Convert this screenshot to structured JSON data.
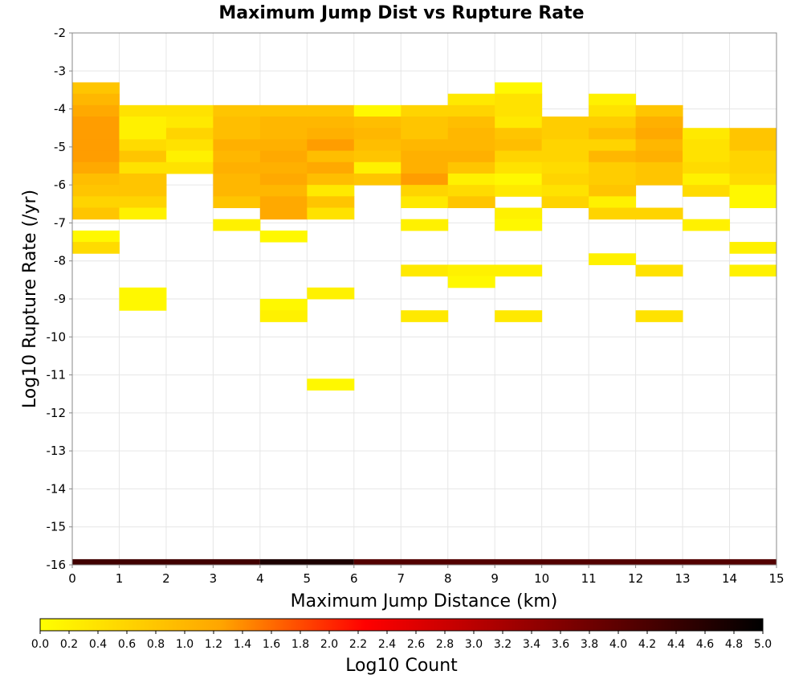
{
  "chart_data": {
    "type": "heatmap",
    "title": "Maximum Jump Dist vs Rupture Rate",
    "xlabel": "Maximum Jump Distance (km)",
    "ylabel": "Log10 Rupture Rate (/yr)",
    "colorbar_label": "Log10 Count",
    "xlim": [
      0,
      15
    ],
    "ylim": [
      -16,
      -2
    ],
    "x_ticks": [
      "0",
      "1",
      "2",
      "3",
      "4",
      "5",
      "6",
      "7",
      "8",
      "9",
      "10",
      "11",
      "12",
      "13",
      "14",
      "15"
    ],
    "y_ticks": [
      "-2",
      "-3",
      "-4",
      "-5",
      "-6",
      "-7",
      "-8",
      "-9",
      "-10",
      "-11",
      "-12",
      "-13",
      "-14",
      "-15",
      "-16"
    ],
    "colorbar_ticks": [
      "0.0",
      "0.2",
      "0.4",
      "0.6",
      "0.8",
      "1.0",
      "1.2",
      "1.4",
      "1.6",
      "1.8",
      "2.0",
      "2.2",
      "2.4",
      "2.6",
      "2.8",
      "3.0",
      "3.2",
      "3.4",
      "3.6",
      "3.8",
      "4.0",
      "4.2",
      "4.4",
      "4.6",
      "4.8",
      "5.0"
    ],
    "colorbar_range": [
      0,
      5
    ],
    "colormap": [
      "#ffff00",
      "#ffa500",
      "#ff0000",
      "#8b0000",
      "#000000"
    ],
    "bin_width_x": 1,
    "bin_height_y": 0.3,
    "grid": true,
    "cells": [
      {
        "x": 0,
        "y": -3.3,
        "v": 0.8
      },
      {
        "x": 0,
        "y": -3.6,
        "v": 1.0
      },
      {
        "x": 0,
        "y": -3.9,
        "v": 1.2
      },
      {
        "x": 0,
        "y": -4.2,
        "v": 1.3
      },
      {
        "x": 0,
        "y": -4.5,
        "v": 1.3
      },
      {
        "x": 0,
        "y": -4.8,
        "v": 1.3
      },
      {
        "x": 0,
        "y": -5.1,
        "v": 1.3
      },
      {
        "x": 0,
        "y": -5.4,
        "v": 1.2
      },
      {
        "x": 0,
        "y": -5.7,
        "v": 0.9
      },
      {
        "x": 0,
        "y": -6.0,
        "v": 0.8
      },
      {
        "x": 0,
        "y": -6.3,
        "v": 0.6
      },
      {
        "x": 0,
        "y": -6.6,
        "v": 0.8
      },
      {
        "x": 0,
        "y": -7.2,
        "v": 0.1
      },
      {
        "x": 0,
        "y": -7.5,
        "v": 0.5
      },
      {
        "x": 1,
        "y": -3.9,
        "v": 0.4
      },
      {
        "x": 1,
        "y": -4.2,
        "v": 0.2
      },
      {
        "x": 1,
        "y": -4.5,
        "v": 0.2
      },
      {
        "x": 1,
        "y": -4.8,
        "v": 0.5
      },
      {
        "x": 1,
        "y": -5.1,
        "v": 0.8
      },
      {
        "x": 1,
        "y": -5.4,
        "v": 0.4
      },
      {
        "x": 1,
        "y": -5.7,
        "v": 0.8
      },
      {
        "x": 1,
        "y": -6.0,
        "v": 0.8
      },
      {
        "x": 1,
        "y": -6.3,
        "v": 0.6
      },
      {
        "x": 1,
        "y": -6.6,
        "v": 0.2
      },
      {
        "x": 1,
        "y": -8.7,
        "v": 0.1
      },
      {
        "x": 1,
        "y": -9.0,
        "v": 0.1
      },
      {
        "x": 2,
        "y": -3.9,
        "v": 0.4
      },
      {
        "x": 2,
        "y": -4.2,
        "v": 0.3
      },
      {
        "x": 2,
        "y": -4.5,
        "v": 0.6
      },
      {
        "x": 2,
        "y": -4.8,
        "v": 0.4
      },
      {
        "x": 2,
        "y": -5.1,
        "v": 0.2
      },
      {
        "x": 2,
        "y": -5.4,
        "v": 0.4
      },
      {
        "x": 3,
        "y": -3.9,
        "v": 0.8
      },
      {
        "x": 3,
        "y": -4.2,
        "v": 0.9
      },
      {
        "x": 3,
        "y": -4.5,
        "v": 0.9
      },
      {
        "x": 3,
        "y": -4.8,
        "v": 1.1
      },
      {
        "x": 3,
        "y": -5.1,
        "v": 1.0
      },
      {
        "x": 3,
        "y": -5.4,
        "v": 1.1
      },
      {
        "x": 3,
        "y": -5.7,
        "v": 1.0
      },
      {
        "x": 3,
        "y": -6.0,
        "v": 1.0
      },
      {
        "x": 3,
        "y": -6.3,
        "v": 0.8
      },
      {
        "x": 3,
        "y": -6.9,
        "v": 0.2
      },
      {
        "x": 4,
        "y": -3.9,
        "v": 0.8
      },
      {
        "x": 4,
        "y": -4.2,
        "v": 1.0
      },
      {
        "x": 4,
        "y": -4.5,
        "v": 1.0
      },
      {
        "x": 4,
        "y": -4.8,
        "v": 1.1
      },
      {
        "x": 4,
        "y": -5.1,
        "v": 1.2
      },
      {
        "x": 4,
        "y": -5.4,
        "v": 1.1
      },
      {
        "x": 4,
        "y": -5.7,
        "v": 1.2
      },
      {
        "x": 4,
        "y": -6.0,
        "v": 1.0
      },
      {
        "x": 4,
        "y": -6.3,
        "v": 1.2
      },
      {
        "x": 4,
        "y": -6.6,
        "v": 1.2
      },
      {
        "x": 4,
        "y": -7.2,
        "v": 0.1
      },
      {
        "x": 4,
        "y": -9.0,
        "v": 0.1
      },
      {
        "x": 4,
        "y": -9.3,
        "v": 0.2
      },
      {
        "x": 5,
        "y": -3.9,
        "v": 0.8
      },
      {
        "x": 5,
        "y": -4.2,
        "v": 1.0
      },
      {
        "x": 5,
        "y": -4.5,
        "v": 1.1
      },
      {
        "x": 5,
        "y": -4.8,
        "v": 1.3
      },
      {
        "x": 5,
        "y": -5.1,
        "v": 0.9
      },
      {
        "x": 5,
        "y": -5.4,
        "v": 1.2
      },
      {
        "x": 5,
        "y": -5.7,
        "v": 0.9
      },
      {
        "x": 5,
        "y": -6.0,
        "v": 0.3
      },
      {
        "x": 5,
        "y": -6.3,
        "v": 0.8
      },
      {
        "x": 5,
        "y": -6.6,
        "v": 0.4
      },
      {
        "x": 5,
        "y": -8.7,
        "v": 0.2
      },
      {
        "x": 5,
        "y": -11.1,
        "v": 0.1
      },
      {
        "x": 6,
        "y": -3.9,
        "v": 0.1
      },
      {
        "x": 6,
        "y": -4.2,
        "v": 0.9
      },
      {
        "x": 6,
        "y": -4.5,
        "v": 1.0
      },
      {
        "x": 6,
        "y": -4.8,
        "v": 0.9
      },
      {
        "x": 6,
        "y": -5.1,
        "v": 0.8
      },
      {
        "x": 6,
        "y": -5.4,
        "v": 0.2
      },
      {
        "x": 6,
        "y": -5.7,
        "v": 0.8
      },
      {
        "x": 7,
        "y": -3.9,
        "v": 0.6
      },
      {
        "x": 7,
        "y": -4.2,
        "v": 0.8
      },
      {
        "x": 7,
        "y": -4.5,
        "v": 0.8
      },
      {
        "x": 7,
        "y": -4.8,
        "v": 1.0
      },
      {
        "x": 7,
        "y": -5.1,
        "v": 1.1
      },
      {
        "x": 7,
        "y": -5.4,
        "v": 1.1
      },
      {
        "x": 7,
        "y": -5.7,
        "v": 1.3
      },
      {
        "x": 7,
        "y": -6.0,
        "v": 0.6
      },
      {
        "x": 7,
        "y": -6.3,
        "v": 0.3
      },
      {
        "x": 7,
        "y": -6.9,
        "v": 0.2
      },
      {
        "x": 7,
        "y": -8.1,
        "v": 0.3
      },
      {
        "x": 7,
        "y": -9.3,
        "v": 0.3
      },
      {
        "x": 8,
        "y": -3.6,
        "v": 0.3
      },
      {
        "x": 8,
        "y": -3.9,
        "v": 0.6
      },
      {
        "x": 8,
        "y": -4.2,
        "v": 0.9
      },
      {
        "x": 8,
        "y": -4.5,
        "v": 1.0
      },
      {
        "x": 8,
        "y": -4.8,
        "v": 1.0
      },
      {
        "x": 8,
        "y": -5.1,
        "v": 1.1
      },
      {
        "x": 8,
        "y": -5.4,
        "v": 0.8
      },
      {
        "x": 8,
        "y": -5.7,
        "v": 0.2
      },
      {
        "x": 8,
        "y": -6.0,
        "v": 0.5
      },
      {
        "x": 8,
        "y": -6.3,
        "v": 0.8
      },
      {
        "x": 8,
        "y": -8.1,
        "v": 0.2
      },
      {
        "x": 8,
        "y": -8.4,
        "v": 0.1
      },
      {
        "x": 9,
        "y": -3.3,
        "v": 0.1
      },
      {
        "x": 9,
        "y": -3.6,
        "v": 0.4
      },
      {
        "x": 9,
        "y": -3.9,
        "v": 0.4
      },
      {
        "x": 9,
        "y": -4.2,
        "v": 0.3
      },
      {
        "x": 9,
        "y": -4.5,
        "v": 0.8
      },
      {
        "x": 9,
        "y": -4.8,
        "v": 0.9
      },
      {
        "x": 9,
        "y": -5.1,
        "v": 0.6
      },
      {
        "x": 9,
        "y": -5.4,
        "v": 0.4
      },
      {
        "x": 9,
        "y": -5.7,
        "v": 0.1
      },
      {
        "x": 9,
        "y": -6.0,
        "v": 0.3
      },
      {
        "x": 9,
        "y": -6.6,
        "v": 0.2
      },
      {
        "x": 9,
        "y": -6.9,
        "v": 0.1
      },
      {
        "x": 9,
        "y": -8.1,
        "v": 0.2
      },
      {
        "x": 9,
        "y": -9.3,
        "v": 0.3
      },
      {
        "x": 10,
        "y": -4.2,
        "v": 0.7
      },
      {
        "x": 10,
        "y": -4.5,
        "v": 0.7
      },
      {
        "x": 10,
        "y": -4.8,
        "v": 0.6
      },
      {
        "x": 10,
        "y": -5.1,
        "v": 0.6
      },
      {
        "x": 10,
        "y": -5.4,
        "v": 0.5
      },
      {
        "x": 10,
        "y": -5.7,
        "v": 0.6
      },
      {
        "x": 10,
        "y": -6.0,
        "v": 0.4
      },
      {
        "x": 10,
        "y": -6.3,
        "v": 0.6
      },
      {
        "x": 11,
        "y": -3.6,
        "v": 0.2
      },
      {
        "x": 11,
        "y": -3.9,
        "v": 0.4
      },
      {
        "x": 11,
        "y": -4.2,
        "v": 0.7
      },
      {
        "x": 11,
        "y": -4.5,
        "v": 0.9
      },
      {
        "x": 11,
        "y": -4.8,
        "v": 0.6
      },
      {
        "x": 11,
        "y": -5.1,
        "v": 1.0
      },
      {
        "x": 11,
        "y": -5.4,
        "v": 0.7
      },
      {
        "x": 11,
        "y": -5.7,
        "v": 0.7
      },
      {
        "x": 11,
        "y": -6.0,
        "v": 0.8
      },
      {
        "x": 11,
        "y": -6.3,
        "v": 0.2
      },
      {
        "x": 11,
        "y": -6.6,
        "v": 0.6
      },
      {
        "x": 11,
        "y": -7.8,
        "v": 0.2
      },
      {
        "x": 12,
        "y": -3.9,
        "v": 0.8
      },
      {
        "x": 12,
        "y": -4.2,
        "v": 1.1
      },
      {
        "x": 12,
        "y": -4.5,
        "v": 1.2
      },
      {
        "x": 12,
        "y": -4.8,
        "v": 1.0
      },
      {
        "x": 12,
        "y": -5.1,
        "v": 1.1
      },
      {
        "x": 12,
        "y": -5.4,
        "v": 0.8
      },
      {
        "x": 12,
        "y": -5.7,
        "v": 0.8
      },
      {
        "x": 12,
        "y": -6.6,
        "v": 0.6
      },
      {
        "x": 12,
        "y": -8.1,
        "v": 0.4
      },
      {
        "x": 12,
        "y": -9.3,
        "v": 0.4
      },
      {
        "x": 13,
        "y": -4.5,
        "v": 0.3
      },
      {
        "x": 13,
        "y": -4.8,
        "v": 0.4
      },
      {
        "x": 13,
        "y": -5.1,
        "v": 0.4
      },
      {
        "x": 13,
        "y": -5.4,
        "v": 0.5
      },
      {
        "x": 13,
        "y": -5.7,
        "v": 0.2
      },
      {
        "x": 13,
        "y": -6.0,
        "v": 0.5
      },
      {
        "x": 13,
        "y": -6.9,
        "v": 0.2
      },
      {
        "x": 14,
        "y": -4.5,
        "v": 0.8
      },
      {
        "x": 14,
        "y": -4.8,
        "v": 0.8
      },
      {
        "x": 14,
        "y": -5.1,
        "v": 0.6
      },
      {
        "x": 14,
        "y": -5.4,
        "v": 0.6
      },
      {
        "x": 14,
        "y": -5.7,
        "v": 0.5
      },
      {
        "x": 14,
        "y": -6.0,
        "v": 0.1
      },
      {
        "x": 14,
        "y": -6.3,
        "v": 0.1
      },
      {
        "x": 14,
        "y": -7.5,
        "v": 0.2
      },
      {
        "x": 14,
        "y": -8.1,
        "v": 0.2
      }
    ],
    "bottom_strip": {
      "y": [
        -16,
        -15.85
      ],
      "segments": [
        {
          "x0": 0,
          "x1": 4,
          "v": 4.3
        },
        {
          "x0": 4,
          "x1": 6,
          "v": 4.7
        },
        {
          "x0": 6,
          "x1": 15,
          "v": 4.1
        }
      ]
    }
  }
}
